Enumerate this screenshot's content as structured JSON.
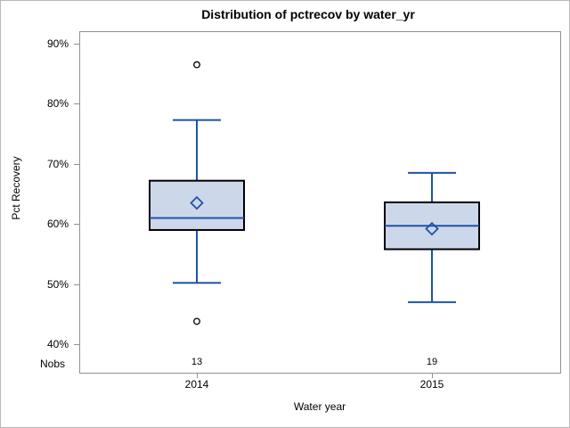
{
  "chart_data": {
    "type": "boxplot",
    "title": "Distribution of pctrecov by water_yr",
    "xlabel": "Water year",
    "ylabel": "Pct Recovery",
    "nobs_label": "Nobs",
    "ylim": [
      40,
      90
    ],
    "yticks": [
      {
        "value": 90,
        "label": "90%"
      },
      {
        "value": 80,
        "label": "80%"
      },
      {
        "value": 70,
        "label": "70%"
      },
      {
        "value": 60,
        "label": "60%"
      },
      {
        "value": 50,
        "label": "50%"
      },
      {
        "value": 40,
        "label": "40%"
      }
    ],
    "categories": [
      "2014",
      "2015"
    ],
    "series": [
      {
        "category": "2014",
        "nobs": 13,
        "whisker_low": 50.2,
        "q1": 59.0,
        "median": 61.0,
        "q3": 67.2,
        "whisker_high": 77.3,
        "mean": 63.5,
        "outliers": [
          86.5,
          43.8
        ]
      },
      {
        "category": "2015",
        "nobs": 19,
        "whisker_low": 47.0,
        "q1": 55.8,
        "median": 59.7,
        "q3": 63.6,
        "whisker_high": 68.5,
        "mean": 59.2,
        "outliers": []
      }
    ],
    "legend": "none",
    "grid": "off",
    "colors": {
      "box_fill": "#ccd8ea",
      "box_border": "#000000",
      "line_blue": "#1f52a8",
      "frame_gray": "#919191",
      "outlier_stroke": "#000000",
      "text": "#000000"
    }
  }
}
